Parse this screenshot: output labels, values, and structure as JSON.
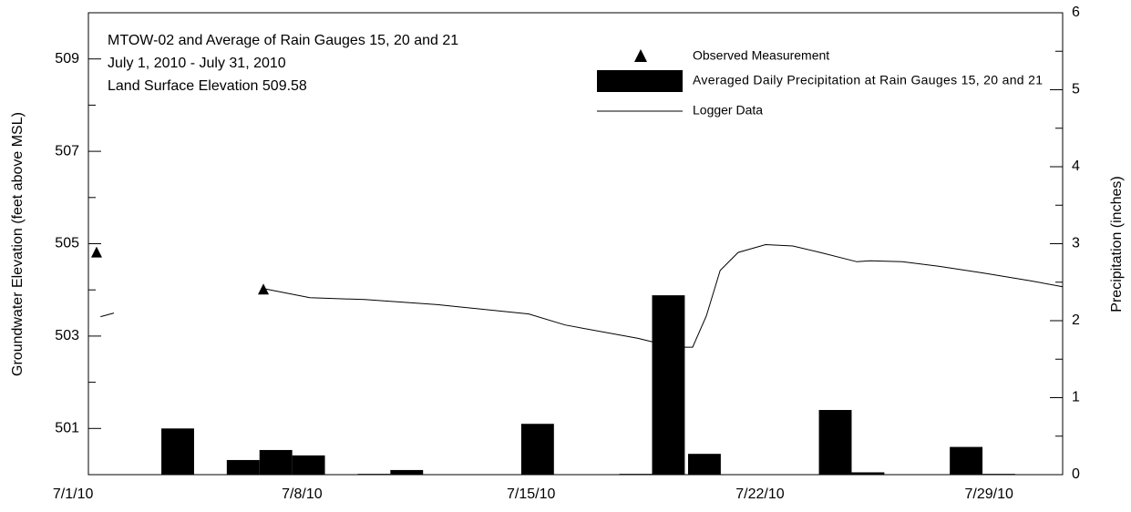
{
  "chart_data": {
    "type": "combo",
    "title": [
      "MTOW-02 and Average of Rain Gauges 15, 20 and 21",
      "July 1, 2010 - July 31, 2010",
      "Land Surface Elevation 509.58"
    ],
    "ylabel": "Groundwater Elevation (feet above MSL)",
    "y2label": "Precipitation (inches)",
    "xlim": [
      1.47,
      31.25
    ],
    "xticks": [
      {
        "value": 1,
        "label": "7/1/10"
      },
      {
        "value": 8,
        "label": "7/8/10"
      },
      {
        "value": 15,
        "label": "7/15/10"
      },
      {
        "value": 22,
        "label": "7/22/10"
      },
      {
        "value": 29,
        "label": "7/29/10"
      }
    ],
    "ylim": [
      500,
      510
    ],
    "yticks": [
      501,
      503,
      505,
      507,
      509
    ],
    "yticks_minor": [
      502,
      504,
      506,
      508
    ],
    "y2lim": [
      0,
      6
    ],
    "y2ticks": [
      0,
      1,
      2,
      3,
      4,
      5,
      6
    ],
    "y2ticks_minor": [
      0.5,
      1.5,
      2.5,
      3.5,
      4.5,
      5.5
    ],
    "legend": "upper right",
    "series": [
      {
        "name": "Observed Measurement",
        "type": "scatter",
        "color": "#000000",
        "x": [
          1.72,
          6.82
        ],
        "values": [
          504.8,
          504.0
        ]
      },
      {
        "name": "Averaged Daily Precipitation at Rain Gauges 15, 20 and 21",
        "type": "bar",
        "axis": "y2",
        "color": "#000000",
        "x": [
          4.2,
          6.2,
          7.2,
          8.2,
          10.2,
          11.2,
          15.2,
          18.2,
          19.2,
          20.3,
          24.3,
          25.3,
          28.3,
          29.3
        ],
        "values": [
          0.6,
          0.19,
          0.32,
          0.25,
          0.01,
          0.06,
          0.66,
          0.01,
          2.33,
          0.27,
          0.84,
          0.03,
          0.36,
          0.01
        ]
      },
      {
        "name": "Logger Data",
        "type": "line",
        "color": "#000000",
        "x": [
          1.84,
          2.25,
          4,
          6.82,
          8.24,
          9.91,
          12.14,
          14.93,
          16.04,
          18.27,
          19.38,
          19.94,
          20.36,
          20.78,
          21.33,
          22.17,
          23.0,
          23.84,
          24.96,
          25.37,
          26.35,
          27.46,
          28.86,
          30.25,
          31.25
        ],
        "values": [
          503.42,
          503.5,
          null,
          504.03,
          503.83,
          503.79,
          503.68,
          503.48,
          503.24,
          502.95,
          502.76,
          502.76,
          503.44,
          504.42,
          504.81,
          504.98,
          504.95,
          504.81,
          504.61,
          504.63,
          504.61,
          504.51,
          504.36,
          504.2,
          504.07
        ]
      }
    ]
  }
}
